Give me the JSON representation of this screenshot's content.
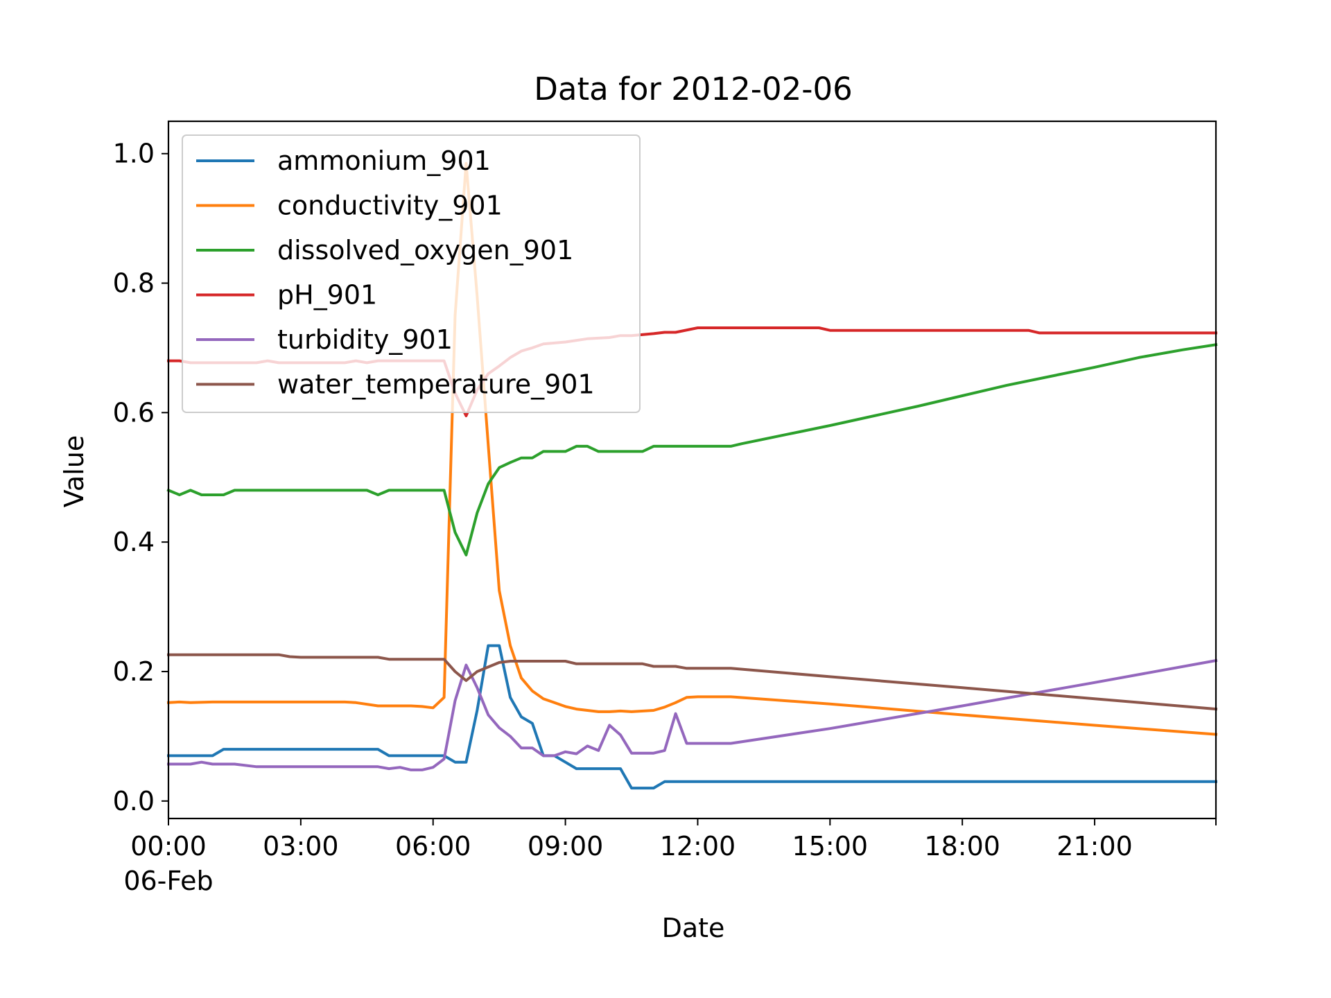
{
  "chart_data": {
    "type": "line",
    "title": "Data for 2012-02-06",
    "xlabel": "Date",
    "ylabel": "Value",
    "x_unit": "hours",
    "xlim": [
      0,
      23.75
    ],
    "ylim": [
      -0.027,
      1.05
    ],
    "x_ticks": [
      {
        "value": 0,
        "label": "00:00",
        "sublabel": "06-Feb"
      },
      {
        "value": 3,
        "label": "03:00"
      },
      {
        "value": 6,
        "label": "06:00"
      },
      {
        "value": 9,
        "label": "09:00"
      },
      {
        "value": 12,
        "label": "12:00"
      },
      {
        "value": 15,
        "label": "15:00"
      },
      {
        "value": 18,
        "label": "18:00"
      },
      {
        "value": 21,
        "label": "21:00"
      }
    ],
    "y_ticks": [
      {
        "value": 0.0,
        "label": "0.0"
      },
      {
        "value": 0.2,
        "label": "0.2"
      },
      {
        "value": 0.4,
        "label": "0.4"
      },
      {
        "value": 0.6,
        "label": "0.6"
      },
      {
        "value": 0.8,
        "label": "0.8"
      },
      {
        "value": 1.0,
        "label": "1.0"
      }
    ],
    "grid": false,
    "legend_position": "top-left",
    "series": [
      {
        "name": "ammonium_901",
        "color": "#1f77b4",
        "points": [
          [
            0,
            0.07
          ],
          [
            0.5,
            0.07
          ],
          [
            1.0,
            0.07
          ],
          [
            1.25,
            0.08
          ],
          [
            1.5,
            0.08
          ],
          [
            2.0,
            0.08
          ],
          [
            3.0,
            0.08
          ],
          [
            4.0,
            0.08
          ],
          [
            4.75,
            0.08
          ],
          [
            5.0,
            0.07
          ],
          [
            5.5,
            0.07
          ],
          [
            6.0,
            0.07
          ],
          [
            6.25,
            0.07
          ],
          [
            6.5,
            0.06
          ],
          [
            6.75,
            0.06
          ],
          [
            7.0,
            0.14
          ],
          [
            7.25,
            0.24
          ],
          [
            7.5,
            0.24
          ],
          [
            7.75,
            0.16
          ],
          [
            8.0,
            0.13
          ],
          [
            8.25,
            0.12
          ],
          [
            8.5,
            0.07
          ],
          [
            8.75,
            0.07
          ],
          [
            9.0,
            0.06
          ],
          [
            9.25,
            0.05
          ],
          [
            9.5,
            0.05
          ],
          [
            10.0,
            0.05
          ],
          [
            10.25,
            0.05
          ],
          [
            10.5,
            0.02
          ],
          [
            10.75,
            0.02
          ],
          [
            11.0,
            0.02
          ],
          [
            11.25,
            0.03
          ],
          [
            12.0,
            0.03
          ],
          [
            15.0,
            0.03
          ],
          [
            18.0,
            0.03
          ],
          [
            21.0,
            0.03
          ],
          [
            23.75,
            0.03
          ]
        ]
      },
      {
        "name": "conductivity_901",
        "color": "#ff7f0e",
        "points": [
          [
            0,
            0.152
          ],
          [
            0.25,
            0.153
          ],
          [
            0.5,
            0.152
          ],
          [
            1.0,
            0.153
          ],
          [
            2.0,
            0.153
          ],
          [
            3.0,
            0.153
          ],
          [
            4.0,
            0.153
          ],
          [
            4.25,
            0.152
          ],
          [
            4.75,
            0.147
          ],
          [
            5.0,
            0.147
          ],
          [
            5.5,
            0.147
          ],
          [
            5.75,
            0.146
          ],
          [
            6.0,
            0.144
          ],
          [
            6.25,
            0.16
          ],
          [
            6.5,
            0.75
          ],
          [
            6.75,
            0.985
          ],
          [
            7.0,
            0.78
          ],
          [
            7.25,
            0.55
          ],
          [
            7.5,
            0.325
          ],
          [
            7.75,
            0.24
          ],
          [
            8.0,
            0.19
          ],
          [
            8.25,
            0.17
          ],
          [
            8.5,
            0.158
          ],
          [
            8.75,
            0.152
          ],
          [
            9.0,
            0.146
          ],
          [
            9.25,
            0.142
          ],
          [
            9.5,
            0.14
          ],
          [
            9.75,
            0.138
          ],
          [
            10.0,
            0.138
          ],
          [
            10.25,
            0.139
          ],
          [
            10.5,
            0.138
          ],
          [
            11.0,
            0.14
          ],
          [
            11.25,
            0.145
          ],
          [
            11.5,
            0.152
          ],
          [
            11.75,
            0.16
          ],
          [
            12.0,
            0.161
          ],
          [
            12.75,
            0.161
          ],
          [
            15.0,
            0.15
          ],
          [
            18.0,
            0.133
          ],
          [
            21.0,
            0.117
          ],
          [
            23.75,
            0.103
          ]
        ]
      },
      {
        "name": "dissolved_oxygen_901",
        "color": "#2ca02c",
        "points": [
          [
            0,
            0.48
          ],
          [
            0.25,
            0.473
          ],
          [
            0.5,
            0.48
          ],
          [
            0.75,
            0.473
          ],
          [
            1.0,
            0.473
          ],
          [
            1.25,
            0.473
          ],
          [
            1.5,
            0.48
          ],
          [
            2.0,
            0.48
          ],
          [
            3.0,
            0.48
          ],
          [
            4.0,
            0.48
          ],
          [
            4.5,
            0.48
          ],
          [
            4.75,
            0.473
          ],
          [
            5.0,
            0.48
          ],
          [
            5.5,
            0.48
          ],
          [
            6.0,
            0.48
          ],
          [
            6.25,
            0.48
          ],
          [
            6.5,
            0.415
          ],
          [
            6.75,
            0.38
          ],
          [
            7.0,
            0.445
          ],
          [
            7.25,
            0.49
          ],
          [
            7.5,
            0.515
          ],
          [
            7.75,
            0.523
          ],
          [
            8.0,
            0.53
          ],
          [
            8.25,
            0.53
          ],
          [
            8.5,
            0.54
          ],
          [
            9.0,
            0.54
          ],
          [
            9.25,
            0.548
          ],
          [
            9.5,
            0.548
          ],
          [
            9.75,
            0.54
          ],
          [
            10.0,
            0.54
          ],
          [
            10.5,
            0.54
          ],
          [
            10.75,
            0.54
          ],
          [
            11.0,
            0.548
          ],
          [
            11.5,
            0.548
          ],
          [
            12.0,
            0.548
          ],
          [
            12.75,
            0.548
          ],
          [
            13.0,
            0.552
          ],
          [
            14.0,
            0.566
          ],
          [
            15.0,
            0.58
          ],
          [
            16.0,
            0.595
          ],
          [
            17.0,
            0.61
          ],
          [
            18.0,
            0.626
          ],
          [
            19.0,
            0.642
          ],
          [
            20.0,
            0.656
          ],
          [
            21.0,
            0.67
          ],
          [
            22.0,
            0.685
          ],
          [
            23.0,
            0.697
          ],
          [
            23.75,
            0.705
          ]
        ]
      },
      {
        "name": "pH_901",
        "color": "#d62728",
        "points": [
          [
            0,
            0.68
          ],
          [
            0.25,
            0.68
          ],
          [
            0.5,
            0.677
          ],
          [
            1.0,
            0.677
          ],
          [
            2.0,
            0.677
          ],
          [
            2.25,
            0.68
          ],
          [
            2.5,
            0.677
          ],
          [
            3.0,
            0.677
          ],
          [
            4.0,
            0.677
          ],
          [
            4.25,
            0.68
          ],
          [
            4.5,
            0.677
          ],
          [
            4.75,
            0.68
          ],
          [
            5.0,
            0.68
          ],
          [
            5.5,
            0.68
          ],
          [
            6.0,
            0.68
          ],
          [
            6.25,
            0.68
          ],
          [
            6.5,
            0.63
          ],
          [
            6.75,
            0.595
          ],
          [
            7.0,
            0.635
          ],
          [
            7.25,
            0.66
          ],
          [
            7.5,
            0.672
          ],
          [
            7.75,
            0.685
          ],
          [
            8.0,
            0.695
          ],
          [
            8.25,
            0.7
          ],
          [
            8.5,
            0.706
          ],
          [
            9.0,
            0.709
          ],
          [
            9.5,
            0.714
          ],
          [
            10.0,
            0.716
          ],
          [
            10.25,
            0.719
          ],
          [
            10.5,
            0.719
          ],
          [
            11.0,
            0.722
          ],
          [
            11.25,
            0.724
          ],
          [
            11.5,
            0.724
          ],
          [
            12.0,
            0.731
          ],
          [
            13.0,
            0.731
          ],
          [
            14.0,
            0.731
          ],
          [
            14.75,
            0.731
          ],
          [
            15.0,
            0.727
          ],
          [
            16.0,
            0.727
          ],
          [
            17.0,
            0.727
          ],
          [
            18.0,
            0.727
          ],
          [
            19.0,
            0.727
          ],
          [
            19.5,
            0.727
          ],
          [
            19.75,
            0.723
          ],
          [
            21.0,
            0.723
          ],
          [
            23.75,
            0.723
          ]
        ]
      },
      {
        "name": "turbidity_901",
        "color": "#9467bd",
        "points": [
          [
            0,
            0.057
          ],
          [
            0.5,
            0.057
          ],
          [
            0.75,
            0.06
          ],
          [
            1.0,
            0.057
          ],
          [
            1.5,
            0.057
          ],
          [
            2.0,
            0.053
          ],
          [
            2.5,
            0.053
          ],
          [
            3.0,
            0.053
          ],
          [
            4.0,
            0.053
          ],
          [
            4.75,
            0.053
          ],
          [
            5.0,
            0.05
          ],
          [
            5.25,
            0.052
          ],
          [
            5.5,
            0.048
          ],
          [
            5.75,
            0.048
          ],
          [
            6.0,
            0.052
          ],
          [
            6.25,
            0.065
          ],
          [
            6.5,
            0.155
          ],
          [
            6.75,
            0.21
          ],
          [
            7.0,
            0.175
          ],
          [
            7.25,
            0.133
          ],
          [
            7.5,
            0.113
          ],
          [
            7.75,
            0.1
          ],
          [
            8.0,
            0.082
          ],
          [
            8.25,
            0.082
          ],
          [
            8.5,
            0.07
          ],
          [
            8.75,
            0.07
          ],
          [
            9.0,
            0.076
          ],
          [
            9.25,
            0.073
          ],
          [
            9.5,
            0.085
          ],
          [
            9.75,
            0.078
          ],
          [
            10.0,
            0.117
          ],
          [
            10.25,
            0.102
          ],
          [
            10.5,
            0.074
          ],
          [
            10.75,
            0.074
          ],
          [
            11.0,
            0.074
          ],
          [
            11.25,
            0.078
          ],
          [
            11.5,
            0.135
          ],
          [
            11.75,
            0.089
          ],
          [
            12.0,
            0.089
          ],
          [
            12.75,
            0.089
          ],
          [
            15.0,
            0.112
          ],
          [
            18.0,
            0.147
          ],
          [
            21.0,
            0.183
          ],
          [
            23.75,
            0.217
          ]
        ]
      },
      {
        "name": "water_temperature_901",
        "color": "#8c564b",
        "points": [
          [
            0,
            0.226
          ],
          [
            1.0,
            0.226
          ],
          [
            2.0,
            0.226
          ],
          [
            2.5,
            0.226
          ],
          [
            2.75,
            0.223
          ],
          [
            3.0,
            0.222
          ],
          [
            4.0,
            0.222
          ],
          [
            4.75,
            0.222
          ],
          [
            5.0,
            0.219
          ],
          [
            5.5,
            0.219
          ],
          [
            6.0,
            0.219
          ],
          [
            6.25,
            0.219
          ],
          [
            6.5,
            0.2
          ],
          [
            6.75,
            0.186
          ],
          [
            7.0,
            0.2
          ],
          [
            7.25,
            0.207
          ],
          [
            7.5,
            0.214
          ],
          [
            7.75,
            0.216
          ],
          [
            8.0,
            0.216
          ],
          [
            9.0,
            0.216
          ],
          [
            9.25,
            0.212
          ],
          [
            9.5,
            0.212
          ],
          [
            10.0,
            0.212
          ],
          [
            10.75,
            0.212
          ],
          [
            11.0,
            0.208
          ],
          [
            11.5,
            0.208
          ],
          [
            11.75,
            0.205
          ],
          [
            12.0,
            0.205
          ],
          [
            12.75,
            0.205
          ],
          [
            15.0,
            0.192
          ],
          [
            18.0,
            0.175
          ],
          [
            21.0,
            0.158
          ],
          [
            23.75,
            0.142
          ]
        ]
      }
    ]
  }
}
